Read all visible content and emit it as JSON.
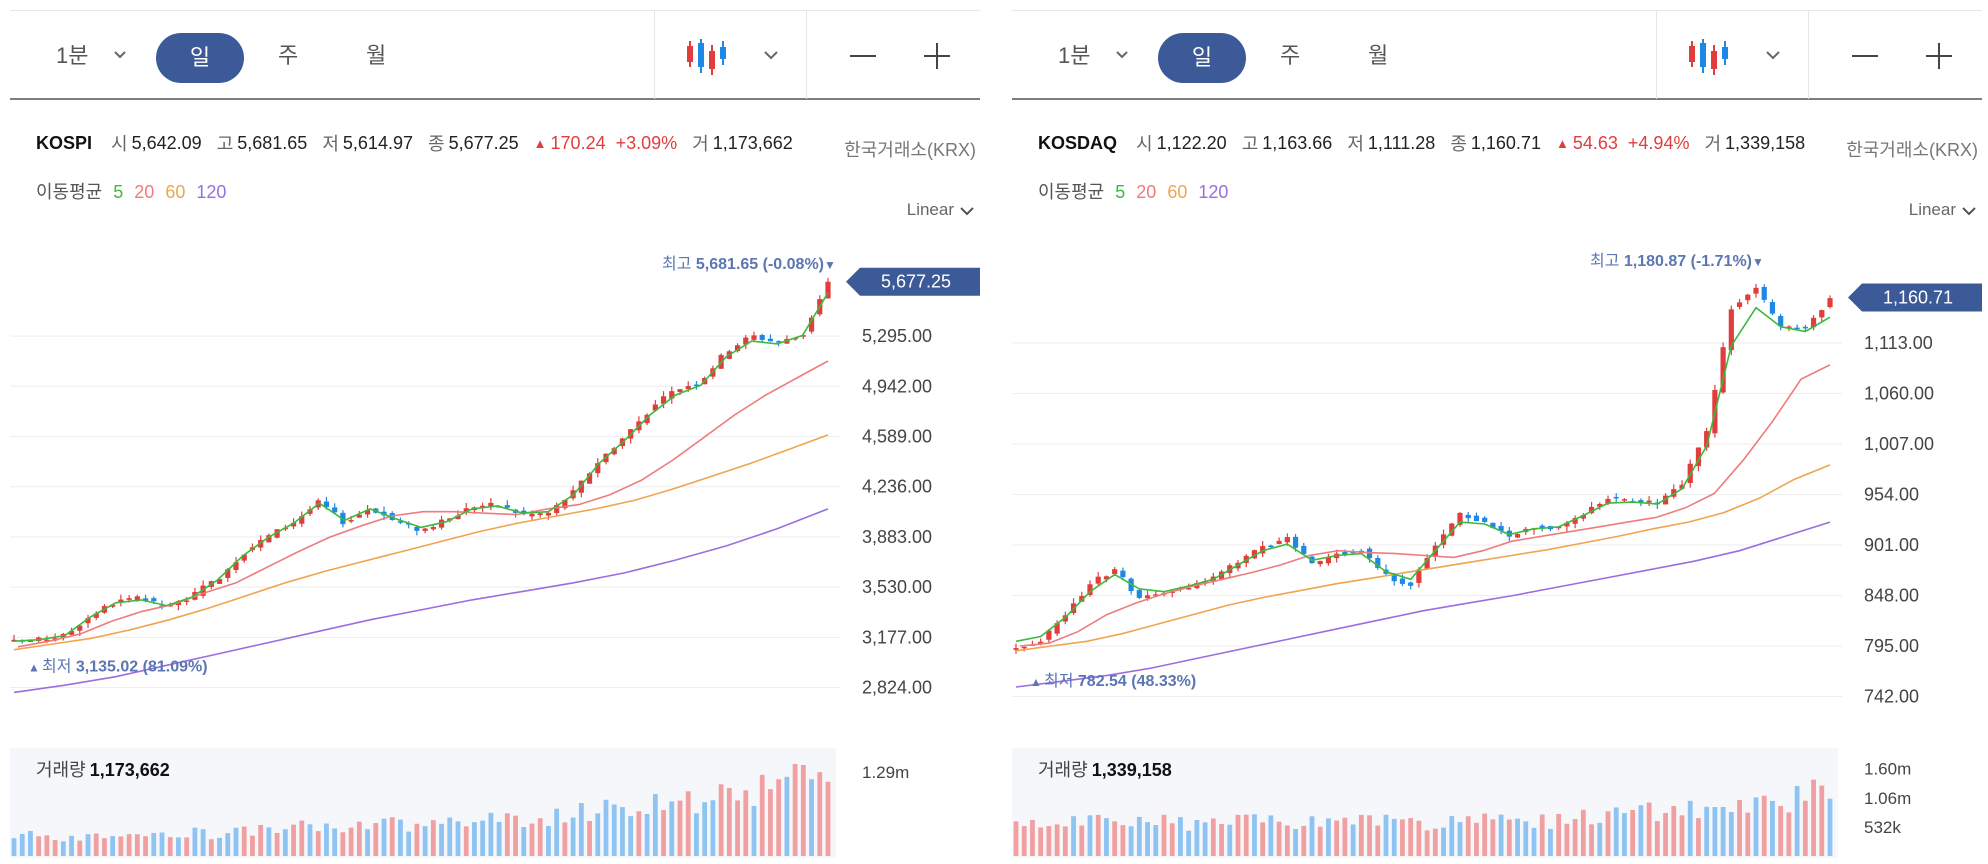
{
  "panels": [
    {
      "toolbar": {
        "period_min": "1분",
        "period_day": "일",
        "period_week": "주",
        "period_month": "월"
      },
      "info": {
        "name": "KOSPI",
        "open_label": "시",
        "open": "5,642.09",
        "high_label": "고",
        "high": "5,681.65",
        "low_label": "저",
        "low": "5,614.97",
        "close_label": "종",
        "close": "5,677.25",
        "change_arrow": "▲",
        "change": "170.24",
        "change_pct": "+3.09%",
        "volume_label": "거",
        "volume": "1,173,662",
        "exchange": "한국거래소(KRX)"
      },
      "ma": {
        "label": "이동평균",
        "periods": [
          "5",
          "20",
          "60",
          "120"
        ]
      },
      "scale": "Linear",
      "high_marker": {
        "label": "최고",
        "value": "5,681.65",
        "pct": "(-0.08%)",
        "arrow": "▼"
      },
      "low_marker": {
        "label": "최저",
        "value": "3,135.02",
        "pct": "(81.09%)",
        "arrow": "▲"
      },
      "current_price": "5,677.25",
      "volume_title": "거래량",
      "volume_value": "1,173,662",
      "chart_data": {
        "type": "candlestick",
        "ylim": [
          2680,
          5830
        ],
        "y_ticks": [
          "5,295.00",
          "4,942.00",
          "4,589.00",
          "4,236.00",
          "3,883.00",
          "3,530.00",
          "3,177.00",
          "2,824.00"
        ],
        "anchors": [
          3145,
          3160,
          3190,
          3330,
          3430,
          3450,
          3380,
          3470,
          3590,
          3770,
          3890,
          3990,
          4130,
          3980,
          4090,
          3990,
          3930,
          4000,
          4100,
          4110,
          4040,
          4050,
          4200,
          4420,
          4590,
          4780,
          4920,
          4980,
          5190,
          5300,
          5250,
          5300,
          5677
        ],
        "ma5": [
          3150,
          3160,
          3190,
          3320,
          3420,
          3440,
          3400,
          3460,
          3580,
          3750,
          3880,
          3980,
          4120,
          4000,
          4080,
          4010,
          3950,
          3990,
          4080,
          4100,
          4050,
          4060,
          4180,
          4400,
          4560,
          4740,
          4880,
          4950,
          5150,
          5260,
          5240,
          5300,
          5600
        ],
        "ma20": [
          3110,
          3150,
          3200,
          3290,
          3360,
          3410,
          3490,
          3560,
          3670,
          3780,
          3880,
          3960,
          4030,
          4060,
          4060,
          4050,
          4040,
          4080,
          4110,
          4180,
          4280,
          4420,
          4580,
          4740,
          4880,
          5000,
          5120
        ],
        "ma60": [
          3090,
          3130,
          3170,
          3230,
          3300,
          3380,
          3470,
          3560,
          3640,
          3710,
          3780,
          3850,
          3920,
          3980,
          4030,
          4080,
          4140,
          4220,
          4310,
          4400,
          4500,
          4600
        ],
        "ma120": [
          2790,
          2840,
          2900,
          2980,
          3060,
          3140,
          3220,
          3300,
          3370,
          3440,
          3500,
          3560,
          3630,
          3720,
          3820,
          3940,
          4080
        ],
        "volume_ylim": [
          0,
          1600000
        ],
        "volume_tick": "1.29m",
        "volume_series": [
          300000,
          320000,
          280000,
          350000,
          330000,
          310000,
          360000,
          340000,
          380000,
          420000,
          450000,
          400000,
          480000,
          520000,
          500000,
          470000,
          530000,
          560000,
          520000,
          600000,
          650000,
          700000,
          740000,
          800000,
          850000,
          900000,
          950000,
          1100000,
          1400000,
          1173662
        ]
      }
    },
    {
      "toolbar": {
        "period_min": "1분",
        "period_day": "일",
        "period_week": "주",
        "period_month": "월"
      },
      "info": {
        "name": "KOSDAQ",
        "open_label": "시",
        "open": "1,122.20",
        "high_label": "고",
        "high": "1,163.66",
        "low_label": "저",
        "low": "1,111.28",
        "close_label": "종",
        "close": "1,160.71",
        "change_arrow": "▲",
        "change": "54.63",
        "change_pct": "+4.94%",
        "volume_label": "거",
        "volume": "1,339,158",
        "exchange": "한국거래소(KRX)"
      },
      "ma": {
        "label": "이동평균",
        "periods": [
          "5",
          "20",
          "60",
          "120"
        ]
      },
      "scale": "Linear",
      "high_marker": {
        "label": "최고",
        "value": "1,180.87",
        "pct": "(-1.71%)",
        "arrow": "▼"
      },
      "low_marker": {
        "label": "최저",
        "value": "782.54",
        "pct": "(48.33%)",
        "arrow": "▲"
      },
      "current_price": "1,160.71",
      "volume_title": "거래량",
      "volume_value": "1,339,158",
      "chart_data": {
        "type": "candlestick",
        "ylim": [
          730,
          1200
        ],
        "y_ticks": [
          "1,113.00",
          "1,060.00",
          "1,007.00",
          "954.00",
          "901.00",
          "848.00",
          "795.00",
          "742.00"
        ],
        "anchors": [
          795,
          800,
          830,
          860,
          876,
          845,
          850,
          858,
          866,
          883,
          900,
          908,
          880,
          892,
          895,
          868,
          860,
          900,
          933,
          925,
          910,
          920,
          920,
          935,
          950,
          948,
          945,
          966,
          1020,
          1150,
          1170,
          1130,
          1128,
          1160
        ],
        "ma5": [
          800,
          805,
          825,
          852,
          870,
          855,
          852,
          858,
          865,
          880,
          895,
          902,
          885,
          890,
          892,
          873,
          865,
          895,
          925,
          923,
          912,
          918,
          920,
          932,
          945,
          946,
          944,
          960,
          1005,
          1110,
          1150,
          1130,
          1125,
          1140
        ],
        "ma20": [
          795,
          798,
          810,
          828,
          840,
          850,
          858,
          865,
          872,
          880,
          890,
          895,
          893,
          892,
          890,
          888,
          895,
          905,
          910,
          915,
          920,
          925,
          930,
          940,
          955,
          990,
          1030,
          1075,
          1090
        ],
        "ma60": [
          790,
          795,
          800,
          808,
          818,
          828,
          838,
          846,
          853,
          860,
          866,
          872,
          878,
          884,
          890,
          896,
          903,
          910,
          918,
          925,
          935,
          950,
          970,
          985
        ],
        "ma120": [
          752,
          758,
          764,
          772,
          782,
          792,
          802,
          812,
          822,
          832,
          840,
          848,
          857,
          866,
          875,
          884,
          895,
          910,
          925
        ],
        "volume_ylim": [
          0,
          1900000
        ],
        "volume_ticks": [
          "1.60m",
          "1.06m",
          "532k"
        ],
        "volume_series": [
          600000,
          650000,
          700000,
          620000,
          580000,
          640000,
          600000,
          660000,
          620000,
          680000,
          640000,
          600000,
          650000,
          700000,
          620000,
          580000,
          640000,
          680000,
          600000,
          650000,
          700000,
          720000,
          760000,
          800000,
          850000,
          900000,
          950000,
          1000000,
          1100000,
          1339158
        ]
      }
    }
  ],
  "colors": {
    "up": "#e23d3d",
    "down": "#1f88e5",
    "accent": "#3d5a98",
    "ma5": "#3cba3c",
    "ma20": "#ee7c7c",
    "ma60": "#f0a450",
    "ma120": "#9b6ee0",
    "vol_up": "#f0a0a0",
    "vol_down": "#8ec3f2"
  }
}
